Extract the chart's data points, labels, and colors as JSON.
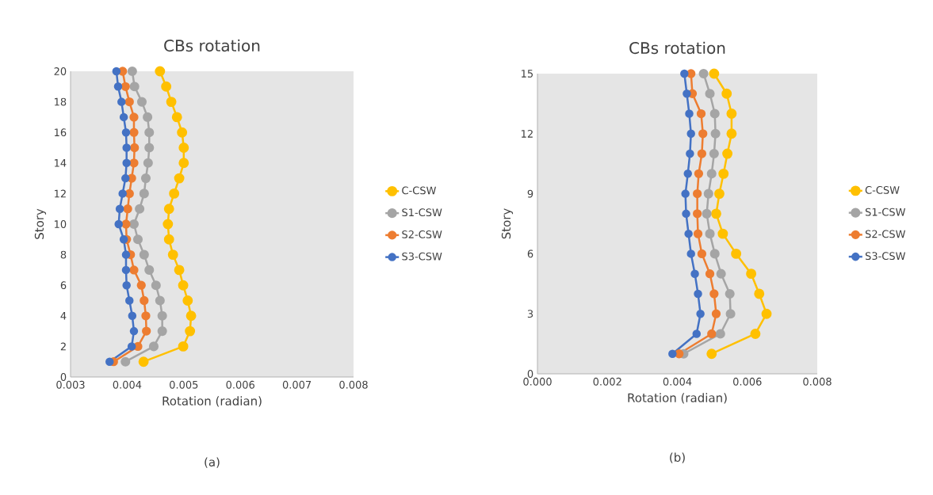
{
  "chart_data": [
    {
      "type": "line",
      "title": "CBs rotation",
      "xlabel": "Rotation (radian)",
      "ylabel": "Story",
      "annotations": [
        "(a)"
      ],
      "xlim": [
        0.003,
        0.008
      ],
      "xticks": [
        0.003,
        0.004,
        0.005,
        0.006,
        0.007,
        0.008
      ],
      "ylim": [
        0,
        20
      ],
      "yticks": [
        0,
        2,
        4,
        6,
        8,
        10,
        12,
        14,
        16,
        18,
        20
      ],
      "grid": false,
      "legend": "right",
      "marker": "circle",
      "line_style": "solid",
      "series": [
        {
          "name": "C-CSW",
          "color": "#ffc000",
          "values": [
            1,
            2,
            3,
            4,
            5,
            6,
            7,
            8,
            9,
            10,
            11,
            12,
            13,
            14,
            15,
            16,
            17,
            18,
            19,
            20
          ],
          "x": [
            0.00429,
            0.00499,
            0.00511,
            0.00513,
            0.00507,
            0.00499,
            0.00492,
            0.00481,
            0.00474,
            0.00472,
            0.00474,
            0.00483,
            0.00492,
            0.005,
            0.005,
            0.00497,
            0.00488,
            0.00478,
            0.00469,
            0.00458
          ]
        },
        {
          "name": "S1-CSW",
          "color": "#a5a5a5",
          "values": [
            1,
            2,
            3,
            4,
            5,
            6,
            7,
            8,
            9,
            10,
            11,
            12,
            13,
            14,
            15,
            16,
            17,
            18,
            19,
            20
          ],
          "x": [
            0.00397,
            0.00447,
            0.00462,
            0.00462,
            0.00458,
            0.00451,
            0.00439,
            0.0043,
            0.00419,
            0.00412,
            0.00422,
            0.0043,
            0.00433,
            0.00437,
            0.00439,
            0.00439,
            0.00436,
            0.00426,
            0.00413,
            0.00409
          ]
        },
        {
          "name": "S2-CSW",
          "color": "#ed7d31",
          "values": [
            1,
            2,
            3,
            4,
            5,
            6,
            7,
            8,
            9,
            10,
            11,
            12,
            13,
            14,
            15,
            16,
            17,
            18,
            19,
            20
          ],
          "x": [
            0.00376,
            0.00419,
            0.00434,
            0.00433,
            0.0043,
            0.00425,
            0.00412,
            0.00406,
            0.00399,
            0.00398,
            0.00401,
            0.00404,
            0.00408,
            0.00412,
            0.00413,
            0.00412,
            0.00412,
            0.00404,
            0.00397,
            0.00392
          ]
        },
        {
          "name": "S3-CSW",
          "color": "#4472c4",
          "values": [
            1,
            2,
            3,
            4,
            5,
            6,
            7,
            8,
            9,
            10,
            11,
            12,
            13,
            14,
            15,
            16,
            17,
            18,
            19,
            20
          ],
          "x": [
            0.00369,
            0.00408,
            0.00412,
            0.00409,
            0.00404,
            0.00399,
            0.00398,
            0.00398,
            0.00394,
            0.00385,
            0.00387,
            0.00392,
            0.00397,
            0.00399,
            0.00399,
            0.00398,
            0.00394,
            0.0039,
            0.00384,
            0.00381
          ]
        }
      ]
    },
    {
      "type": "line",
      "title": "CBs rotation",
      "xlabel": "Rotation (radian)",
      "ylabel": "Story",
      "annotations": [
        "(b)"
      ],
      "xlim": [
        0,
        0.008
      ],
      "xticks": [
        {
          "value": 0,
          "label": "0.000"
        },
        0.002,
        0.004,
        0.006,
        0.008
      ],
      "ylim": [
        0,
        15
      ],
      "yticks": [
        0,
        3,
        6,
        9,
        12,
        15
      ],
      "grid": false,
      "legend": "right",
      "marker": "circle",
      "line_style": "solid",
      "series": [
        {
          "name": "C-CSW",
          "color": "#ffc000",
          "values": [
            1,
            2,
            3,
            4,
            5,
            6,
            7,
            8,
            9,
            10,
            11,
            12,
            13,
            14,
            15
          ],
          "x": [
            0.00498,
            0.00623,
            0.00655,
            0.00634,
            0.00611,
            0.00568,
            0.0053,
            0.00511,
            0.0052,
            0.00532,
            0.00543,
            0.00555,
            0.00555,
            0.00541,
            0.00505
          ]
        },
        {
          "name": "S1-CSW",
          "color": "#a5a5a5",
          "values": [
            1,
            2,
            3,
            4,
            5,
            6,
            7,
            8,
            9,
            10,
            11,
            12,
            13,
            14,
            15
          ],
          "x": [
            0.00418,
            0.00523,
            0.00552,
            0.0055,
            0.00525,
            0.00507,
            0.00493,
            0.00484,
            0.00489,
            0.00498,
            0.00505,
            0.00509,
            0.00507,
            0.00493,
            0.00475
          ]
        },
        {
          "name": "S2-CSW",
          "color": "#ed7d31",
          "values": [
            1,
            2,
            3,
            4,
            5,
            6,
            7,
            8,
            9,
            10,
            11,
            12,
            13,
            14,
            15
          ],
          "x": [
            0.00405,
            0.00498,
            0.00511,
            0.00505,
            0.00493,
            0.0047,
            0.00459,
            0.00457,
            0.00457,
            0.00461,
            0.0047,
            0.00473,
            0.00468,
            0.00443,
            0.00439
          ]
        },
        {
          "name": "S3-CSW",
          "color": "#4472c4",
          "values": [
            1,
            2,
            3,
            4,
            5,
            6,
            7,
            8,
            9,
            10,
            11,
            12,
            13,
            14,
            15
          ],
          "x": [
            0.00386,
            0.00455,
            0.00466,
            0.00459,
            0.0045,
            0.00439,
            0.00432,
            0.00425,
            0.00423,
            0.0043,
            0.00436,
            0.00439,
            0.00434,
            0.00427,
            0.0042
          ]
        }
      ]
    }
  ]
}
